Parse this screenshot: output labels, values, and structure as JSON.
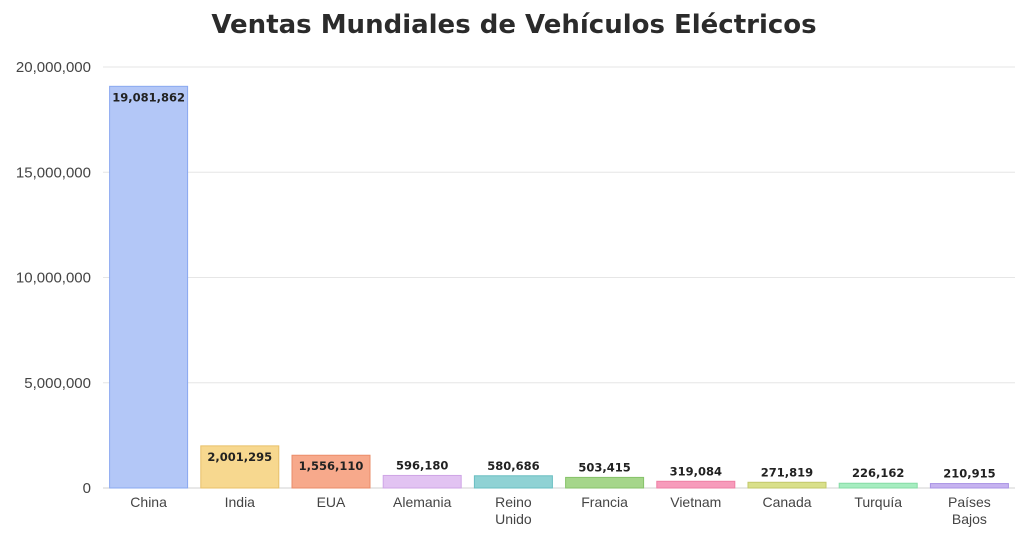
{
  "chart_data": {
    "type": "bar",
    "title": "Ventas Mundiales de Vehículos Eléctricos",
    "xlabel": "",
    "ylabel": "",
    "ylim": [
      0,
      20000000
    ],
    "yticks": [
      0,
      5000000,
      10000000,
      15000000,
      20000000
    ],
    "ytick_labels": [
      "0",
      "5,000,000",
      "10,000,000",
      "15,000,000",
      "20,000,000"
    ],
    "grid": true,
    "categories": [
      [
        "China"
      ],
      [
        "India"
      ],
      [
        "EUA"
      ],
      [
        "Alemania"
      ],
      [
        "Reino",
        "Unido"
      ],
      [
        "Francia"
      ],
      [
        "Vietnam"
      ],
      [
        "Canada"
      ],
      [
        "Turquía"
      ],
      [
        "Países",
        "Bajos"
      ]
    ],
    "values": [
      19081862,
      2001295,
      1556110,
      596180,
      580686,
      503415,
      319084,
      271819,
      226162,
      210915
    ],
    "value_labels": [
      "19,081,862",
      "2,001,295",
      "1,556,110",
      "596,180",
      "580,686",
      "503,415",
      "319,084",
      "271,819",
      "226,162",
      "210,915"
    ],
    "colors": [
      "#b3c7f7",
      "#f7d88f",
      "#f7a98b",
      "#e2c3f2",
      "#8fd2d4",
      "#a5d68a",
      "#f79bbb",
      "#d9e08a",
      "#a6edc0",
      "#c6b3f0"
    ],
    "borders": [
      "#8aa8f0",
      "#e8c06a",
      "#ea8c6a",
      "#cfa5e6",
      "#6abfc2",
      "#86c26a",
      "#ee7fa4",
      "#c2c86a",
      "#85dca6",
      "#a993e4"
    ]
  }
}
